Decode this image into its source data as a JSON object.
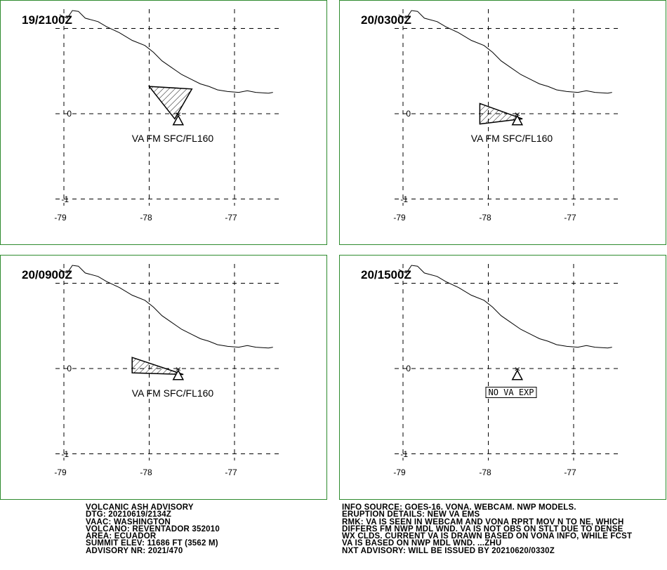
{
  "axes": {
    "x_ticks": [
      "-79",
      "-78",
      "-77"
    ],
    "y_ticks": [
      "0",
      "-1"
    ]
  },
  "panels": [
    {
      "time": "19/2100Z",
      "ash_label": "VA FM SFC/FL160",
      "ash_polygon": [
        [
          -78.0,
          0.32
        ],
        [
          -77.5,
          0.29
        ],
        [
          -77.7,
          -0.06
        ]
      ],
      "no_va": false
    },
    {
      "time": "20/0300Z",
      "ash_label": "VA FM SFC/FL160",
      "ash_polygon": [
        [
          -78.1,
          0.12
        ],
        [
          -77.6,
          -0.06
        ],
        [
          -78.1,
          -0.12
        ]
      ],
      "no_va": false
    },
    {
      "time": "20/0900Z",
      "ash_label": "VA FM SFC/FL160",
      "ash_polygon": [
        [
          -78.2,
          0.13
        ],
        [
          -77.6,
          -0.07
        ],
        [
          -78.2,
          -0.05
        ]
      ],
      "no_va": false
    },
    {
      "time": "20/1500Z",
      "ash_label": "",
      "no_va": true,
      "no_va_label": "NO VA EXP"
    }
  ],
  "volcano": {
    "lon": -77.66,
    "lat": -0.08
  },
  "coastline": [
    [
      -79.05,
      1.16
    ],
    [
      -78.96,
      1.12
    ],
    [
      -78.9,
      1.21
    ],
    [
      -78.83,
      1.2
    ],
    [
      -78.75,
      1.12
    ],
    [
      -78.6,
      1.08
    ],
    [
      -78.5,
      1.02
    ],
    [
      -78.35,
      0.95
    ],
    [
      -78.2,
      0.86
    ],
    [
      -78.05,
      0.8
    ],
    [
      -77.95,
      0.72
    ],
    [
      -77.85,
      0.62
    ],
    [
      -77.75,
      0.55
    ],
    [
      -77.62,
      0.46
    ],
    [
      -77.5,
      0.4
    ],
    [
      -77.4,
      0.35
    ],
    [
      -77.3,
      0.32
    ],
    [
      -77.2,
      0.28
    ],
    [
      -77.08,
      0.26
    ],
    [
      -76.95,
      0.25
    ],
    [
      -76.85,
      0.27
    ],
    [
      -76.75,
      0.25
    ],
    [
      -76.6,
      0.24
    ],
    [
      -76.55,
      0.25
    ]
  ],
  "advisory_left": [
    "VOLCANIC ASH ADVISORY",
    "DTG: 20210619/2134Z",
    "VAAC: WASHINGTON",
    "VOLCANO: REVENTADOR 352010",
    "AREA: ECUADOR",
    "SUMMIT ELEV: 11686 FT (3562 M)",
    "ADVISORY NR: 2021/470"
  ],
  "advisory_right": [
    "INFO SOURCE: GOES-16. VONA. WEBCAM. NWP MODELS.",
    "ERUPTION DETAILS: NEW VA EMS",
    "RMK: VA IS SEEN IN WEBCAM AND VONA RPRT MOV N TO NE, WHICH",
    "DIFFERS FM NWP MDL WND. VA IS NOT OBS ON STLT DUE TO DENSE",
    "WX CLDS. CURRENT VA IS DRAWN BASED ON VONA INFO, WHILE FCST",
    "VA IS BASED ON NWP MDL WND. ...ZHU",
    "NXT ADVISORY: WILL BE ISSUED BY 20210620/0330Z"
  ],
  "colors": {
    "panel_border": "#2e8b2e",
    "lines": "#000000"
  }
}
